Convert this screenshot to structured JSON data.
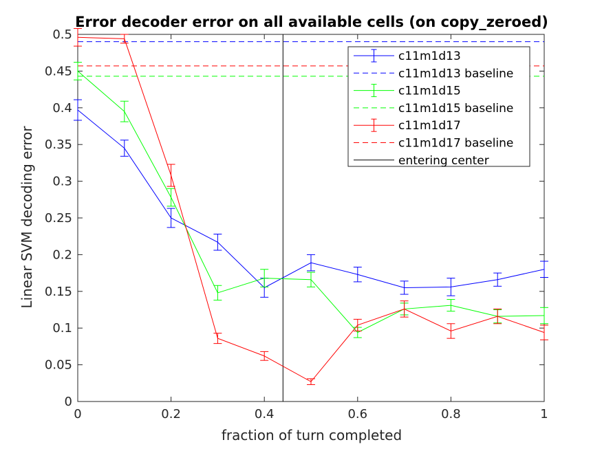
{
  "chart_data": {
    "type": "line",
    "title": "Error decoder error on all available cells (on copy_zeroed)",
    "xlabel": "fraction of turn completed",
    "ylabel": "Linear SVM decoding error",
    "xlim": [
      0,
      1
    ],
    "ylim": [
      0,
      0.5
    ],
    "xticks": [
      "0",
      "0.2",
      "0.4",
      "0.6",
      "0.8",
      "1"
    ],
    "yticks": [
      "0",
      "0.05",
      "0.1",
      "0.15",
      "0.2",
      "0.25",
      "0.3",
      "0.35",
      "0.4",
      "0.45",
      "0.5"
    ],
    "x": [
      0,
      0.1,
      0.2,
      0.3,
      0.4,
      0.5,
      0.6,
      0.7,
      0.8,
      0.9,
      1.0
    ],
    "legend_position": "top-right",
    "grid": false,
    "series": [
      {
        "name": "c11m1d13",
        "color": "#0000ff",
        "values": [
          0.397,
          0.345,
          0.25,
          0.217,
          0.155,
          0.189,
          0.173,
          0.155,
          0.156,
          0.166,
          0.18
        ],
        "errors": [
          0.014,
          0.011,
          0.013,
          0.011,
          0.013,
          0.011,
          0.01,
          0.009,
          0.012,
          0.009,
          0.011
        ],
        "baseline_name": "c11m1d13 baseline",
        "baseline": 0.49
      },
      {
        "name": "c11m1d15",
        "color": "#00ff00",
        "values": [
          0.45,
          0.395,
          0.278,
          0.148,
          0.168,
          0.166,
          0.094,
          0.126,
          0.131,
          0.116,
          0.117
        ],
        "errors": [
          0.012,
          0.014,
          0.012,
          0.01,
          0.012,
          0.01,
          0.007,
          0.008,
          0.008,
          0.009,
          0.011
        ],
        "baseline_name": "c11m1d15 baseline",
        "baseline": 0.443
      },
      {
        "name": "c11m1d17",
        "color": "#ff0000",
        "values": [
          0.496,
          0.494,
          0.308,
          0.086,
          0.062,
          0.027,
          0.104,
          0.126,
          0.096,
          0.116,
          0.094
        ],
        "errors": [
          0.012,
          0.006,
          0.015,
          0.007,
          0.006,
          0.004,
          0.008,
          0.011,
          0.01,
          0.01,
          0.01
        ],
        "baseline_name": "c11m1d17 baseline",
        "baseline": 0.457
      }
    ],
    "vline": {
      "name": "entering center",
      "x": 0.44,
      "color": "#000000"
    }
  }
}
